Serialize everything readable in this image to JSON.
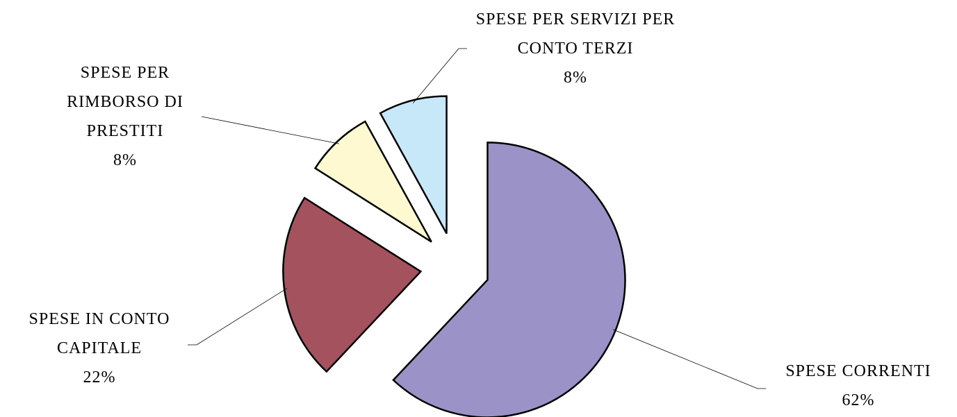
{
  "chart_data": {
    "type": "pie",
    "categories": [
      "SPESE CORRENTI",
      "SPESE IN CONTO CAPITALE",
      "SPESE PER RIMBORSO DI PRESTITI",
      "SPESE PER SERVIZI PER CONTO TERZI"
    ],
    "values": [
      62,
      22,
      8,
      8
    ],
    "value_labels": [
      "62%",
      "22%",
      "8%",
      "8%"
    ],
    "colors": [
      "#9b93c8",
      "#a5525f",
      "#fef9d0",
      "#c7e8f8"
    ],
    "start_angle": 0,
    "direction": "clockwise",
    "exploded": true
  }
}
